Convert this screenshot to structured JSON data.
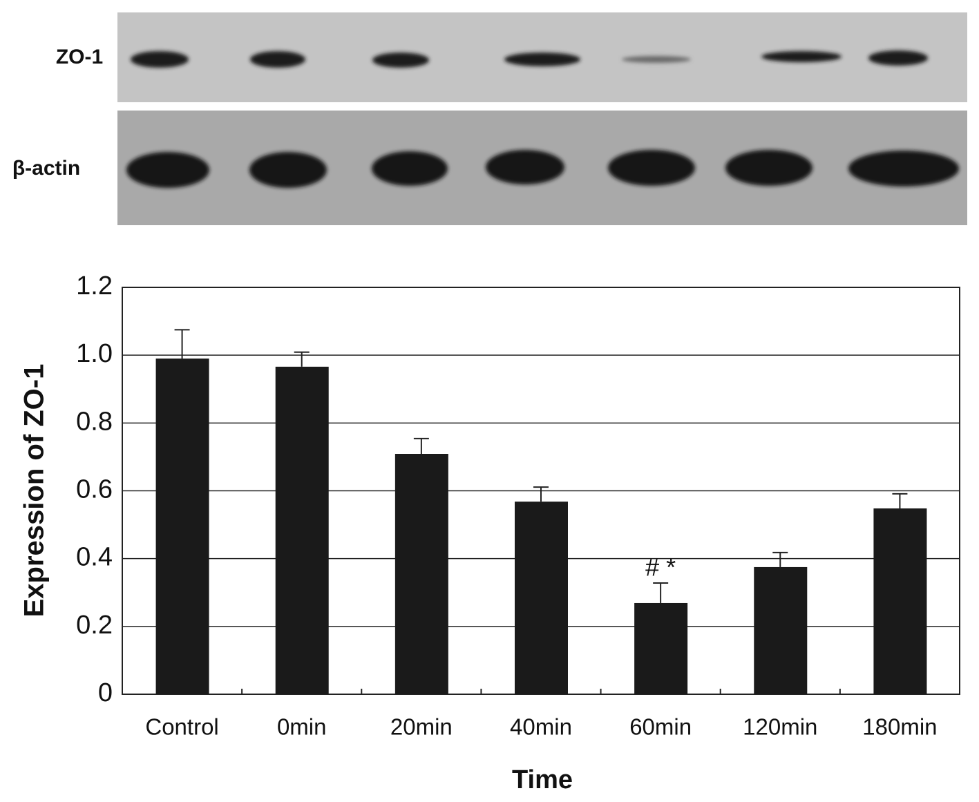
{
  "blot": {
    "labels": [
      "ZO-1",
      "β-actin"
    ]
  },
  "chart_data": {
    "type": "bar",
    "x_label": "Time",
    "y_label": "Expression of ZO-1",
    "categories": [
      "Control",
      "0min",
      "20min",
      "40min",
      "60min",
      "120min",
      "180min"
    ],
    "values": [
      0.99,
      0.966,
      0.709,
      0.568,
      0.269,
      0.375,
      0.548
    ],
    "errors": [
      0.085,
      0.043,
      0.045,
      0.043,
      0.059,
      0.043,
      0.043
    ],
    "color": "#1a1a1a",
    "ylim": [
      0,
      1.2
    ],
    "yticks": [
      0,
      0.2,
      0.4,
      0.6,
      0.8,
      {
        "value": 1,
        "label": "1.0"
      },
      1.2
    ],
    "grid": true,
    "annotations": [
      {
        "text": "# *",
        "category": 4
      }
    ]
  }
}
